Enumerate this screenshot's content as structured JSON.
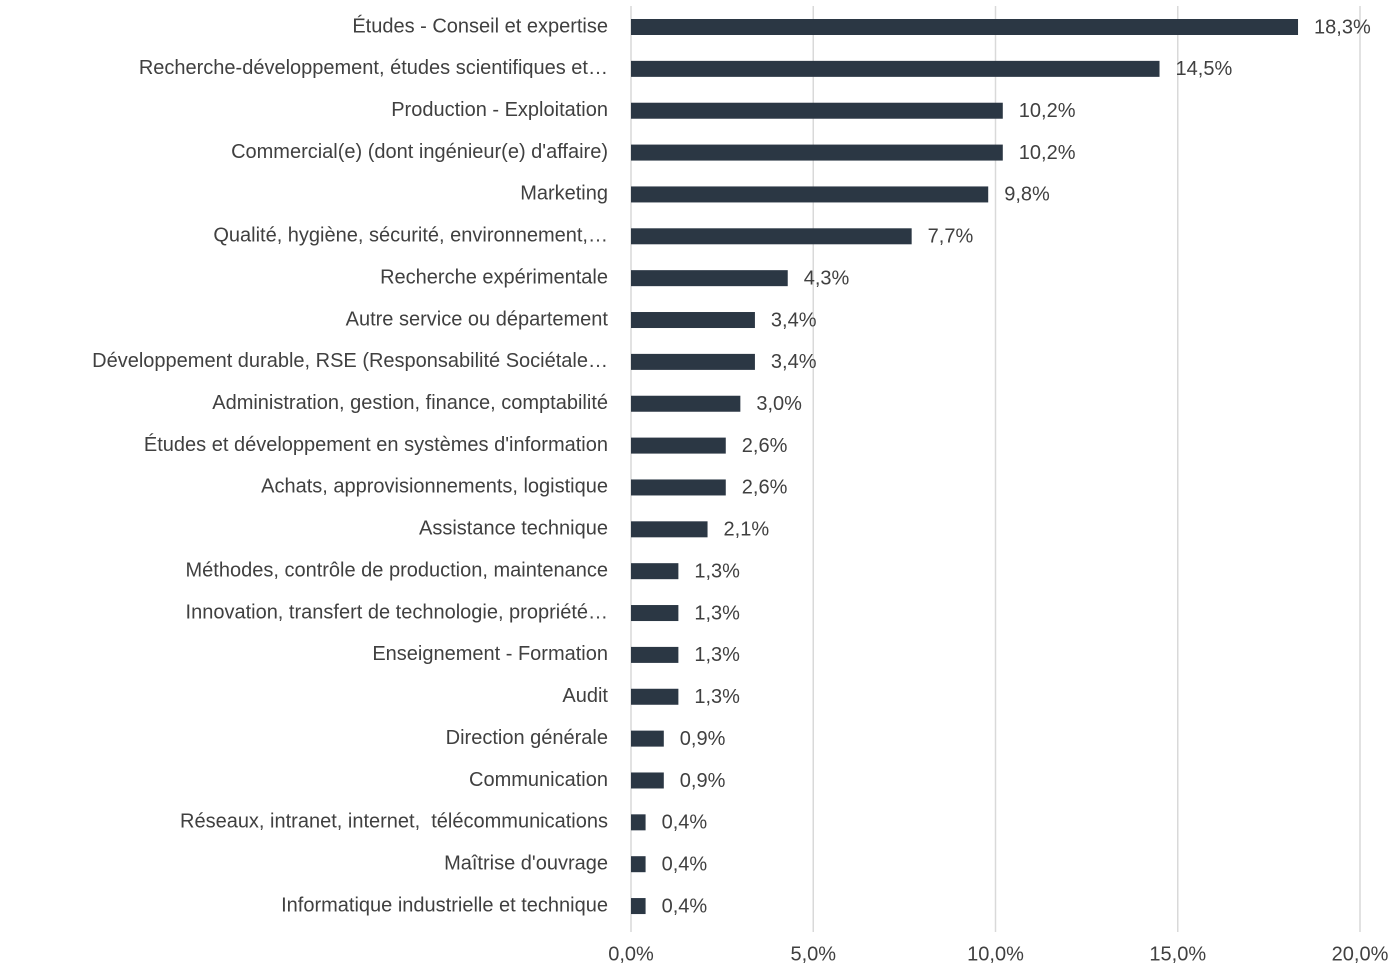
{
  "chart_data": {
    "type": "bar",
    "categories": [
      "Études - Conseil et expertise",
      "Recherche-développement, études scientifiques et…",
      "Production - Exploitation",
      "Commercial(e) (dont ingénieur(e) d'affaire)",
      "Marketing",
      "Qualité, hygiène, sécurité, environnement,…",
      "Recherche expérimentale",
      "Autre service ou département",
      "Développement durable, RSE (Responsabilité Sociétale…",
      "Administration, gestion, finance, comptabilité",
      "Études et développement en systèmes d'information",
      "Achats, approvisionnements, logistique",
      "Assistance technique",
      "Méthodes, contrôle de production, maintenance",
      "Innovation, transfert de technologie, propriété…",
      "Enseignement - Formation",
      "Audit",
      "Direction générale",
      "Communication",
      "Réseaux, intranet, internet,  télécommunications",
      "Maîtrise d'ouvrage",
      "Informatique industrielle et technique"
    ],
    "values": [
      18.3,
      14.5,
      10.2,
      10.2,
      9.8,
      7.7,
      4.3,
      3.4,
      3.4,
      3.0,
      2.6,
      2.6,
      2.1,
      1.3,
      1.3,
      1.3,
      1.3,
      0.9,
      0.9,
      0.4,
      0.4,
      0.4
    ],
    "value_labels": [
      "18,3%",
      "14,5%",
      "10,2%",
      "10,2%",
      "9,8%",
      "7,7%",
      "4,3%",
      "3,4%",
      "3,4%",
      "3,0%",
      "2,6%",
      "2,6%",
      "2,1%",
      "1,3%",
      "1,3%",
      "1,3%",
      "1,3%",
      "0,9%",
      "0,9%",
      "0,4%",
      "0,4%",
      "0,4%"
    ],
    "color": "#2b3744",
    "xlim": [
      0,
      20
    ],
    "xticks": [
      {
        "value": 0,
        "label": "0,0%"
      },
      {
        "value": 5,
        "label": "5,0%"
      },
      {
        "value": 10,
        "label": "10,0%"
      },
      {
        "value": 15,
        "label": "15,0%"
      },
      {
        "value": 20,
        "label": "20,0%"
      }
    ],
    "grid": true
  }
}
